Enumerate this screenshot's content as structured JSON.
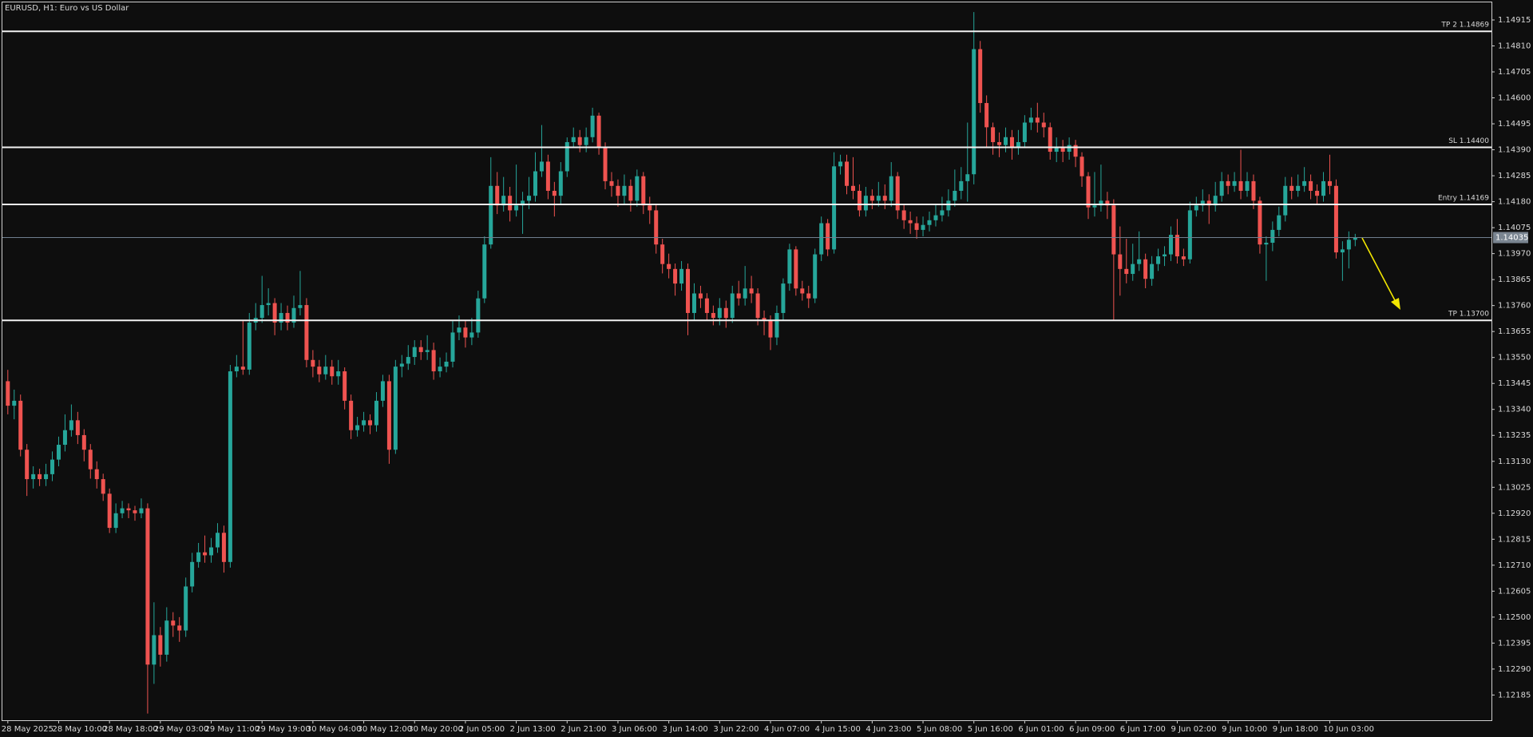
{
  "chart_data": {
    "type": "candlestick",
    "title": "EURUSD, H1:  Euro vs US Dollar",
    "categories": [
      "28 May 2025",
      null,
      null,
      null,
      null,
      null,
      null,
      null,
      "28 May 10:00",
      null,
      null,
      null,
      null,
      null,
      null,
      null,
      "28 May 18:00",
      null,
      null,
      null,
      null,
      null,
      null,
      null,
      "29 May 03:00",
      null,
      null,
      null,
      null,
      null,
      null,
      null,
      "29 May 11:00",
      null,
      null,
      null,
      null,
      null,
      null,
      null,
      "29 May 19:00",
      null,
      null,
      null,
      null,
      null,
      null,
      null,
      "30 May 04:00",
      null,
      null,
      null,
      null,
      null,
      null,
      null,
      "30 May 12:00",
      null,
      null,
      null,
      null,
      null,
      null,
      null,
      "30 May 20:00",
      null,
      null,
      null,
      null,
      null,
      null,
      null,
      "2 Jun 05:00",
      null,
      null,
      null,
      null,
      null,
      null,
      null,
      "2 Jun 13:00",
      null,
      null,
      null,
      null,
      null,
      null,
      null,
      "2 Jun 21:00",
      null,
      null,
      null,
      null,
      null,
      null,
      null,
      "3 Jun 06:00",
      null,
      null,
      null,
      null,
      null,
      null,
      null,
      "3 Jun 14:00",
      null,
      null,
      null,
      null,
      null,
      null,
      null,
      "3 Jun 22:00",
      null,
      null,
      null,
      null,
      null,
      null,
      null,
      "4 Jun 07:00",
      null,
      null,
      null,
      null,
      null,
      null,
      null,
      "4 Jun 15:00",
      null,
      null,
      null,
      null,
      null,
      null,
      null,
      "4 Jun 23:00",
      null,
      null,
      null,
      null,
      null,
      null,
      null,
      "5 Jun 08:00",
      null,
      null,
      null,
      null,
      null,
      null,
      null,
      "5 Jun 16:00",
      null,
      null,
      null,
      null,
      null,
      null,
      null,
      "6 Jun 01:00",
      null,
      null,
      null,
      null,
      null,
      null,
      null,
      "6 Jun 09:00",
      null,
      null,
      null,
      null,
      null,
      null,
      null,
      "6 Jun 17:00",
      null,
      null,
      null,
      null,
      null,
      null,
      null,
      "9 Jun 02:00",
      null,
      null,
      null,
      null,
      null,
      null,
      null,
      "9 Jun 10:00",
      null,
      null,
      null,
      null,
      null,
      null,
      null,
      "9 Jun 18:00",
      null,
      null,
      null,
      null,
      null,
      null,
      null,
      "10 Jun 03:00",
      null,
      null,
      null,
      null
    ],
    "open": [
      1.13454,
      1.13355,
      1.13375,
      1.13177,
      1.13058,
      1.13078,
      1.13058,
      1.13078,
      1.13137,
      1.13197,
      1.13256,
      1.13296,
      1.13236,
      1.13177,
      1.13098,
      1.13058,
      1.12999,
      1.12861,
      1.1292,
      1.1294,
      1.12932,
      1.1292,
      1.1294,
      1.12308,
      1.12427,
      1.12348,
      1.12486,
      1.12466,
      1.12446,
      1.12624,
      1.12723,
      1.12762,
      1.1275,
      1.12782,
      1.12841,
      1.12723,
      1.13494,
      1.13513,
      1.13501,
      1.13691,
      1.1371,
      1.13762,
      1.1377,
      1.13691,
      1.1373,
      1.13691,
      1.1375,
      1.13762,
      1.1354,
      1.13513,
      1.13482,
      1.13513,
      1.13474,
      1.13494,
      1.13375,
      1.13256,
      1.13276,
      1.13296,
      1.13276,
      1.13375,
      1.13454,
      1.13177,
      1.13513,
      1.13525,
      1.13552,
      1.13592,
      1.13572,
      1.1358,
      1.13494,
      1.13513,
      1.13533,
      1.13651,
      1.13671,
      1.13631,
      1.13651,
      1.13789,
      1.14007,
      1.14244,
      1.14165,
      1.14204,
      1.14145,
      1.14165,
      1.14184,
      1.14204,
      1.14303,
      1.14342,
      1.14224,
      1.14204,
      1.14303,
      1.14421,
      1.14441,
      1.14409,
      1.14441,
      1.14528,
      1.14402,
      1.14263,
      1.14244,
      1.14204,
      1.14244,
      1.14184,
      1.14283,
      1.14165,
      1.14145,
      1.14007,
      1.13928,
      1.13908,
      1.13849,
      1.13908,
      1.1373,
      1.13809,
      1.13789,
      1.1373,
      1.1371,
      1.1375,
      1.1371,
      1.13809,
      1.13789,
      1.13829,
      1.13809,
      1.1371,
      1.13698,
      1.13631,
      1.1373,
      1.13849,
      1.13987,
      1.13829,
      1.13809,
      1.13789,
      1.13967,
      1.14093,
      1.13987,
      1.14323,
      1.14342,
      1.14244,
      1.14224,
      1.14145,
      1.14204,
      1.14184,
      1.14204,
      1.14184,
      1.14283,
      1.14145,
      1.14105,
      1.14093,
      1.14066,
      1.14086,
      1.14105,
      1.14125,
      1.14145,
      1.14184,
      1.14224,
      1.14263,
      1.14291,
      1.14797,
      1.14579,
      1.14481,
      1.14421,
      1.14409,
      1.14441,
      1.14402,
      1.14421,
      1.145,
      1.1452,
      1.145,
      1.14481,
      1.14382,
      1.14402,
      1.14382,
      1.14409,
      1.14362,
      1.14283,
      1.14157,
      1.14165,
      1.14184,
      1.14165,
      1.13967,
      1.13908,
      1.13888,
      1.13928,
      1.13947,
      1.13868,
      1.13928,
      1.13959,
      1.13967,
      1.14046,
      1.13959,
      1.13947,
      1.14145,
      1.14165,
      1.14184,
      1.14165,
      1.14204,
      1.14263,
      1.14244,
      1.14263,
      1.14224,
      1.14263,
      1.14184,
      1.14007,
      1.14014,
      1.14066,
      1.14125,
      1.14244,
      1.14224,
      1.14244,
      1.14263,
      1.14224,
      1.14204,
      1.14263,
      1.14244,
      1.13975,
      1.13987,
      1.14026
    ],
    "high": [
      1.135,
      1.1342,
      1.134,
      1.132,
      1.1311,
      1.131,
      1.1312,
      1.1317,
      1.1323,
      1.1332,
      1.1336,
      1.1333,
      1.1326,
      1.132,
      1.1313,
      1.1308,
      1.1302,
      1.1296,
      1.1297,
      1.1296,
      1.1295,
      1.1298,
      1.1296,
      1.1256,
      1.1246,
      1.1254,
      1.1252,
      1.125,
      1.1266,
      1.1276,
      1.128,
      1.1283,
      1.1282,
      1.1288,
      1.1287,
      1.1352,
      1.1356,
      1.137,
      1.1373,
      1.1377,
      1.1388,
      1.1383,
      1.1379,
      1.1377,
      1.1376,
      1.138,
      1.139,
      1.1379,
      1.1358,
      1.1354,
      1.1356,
      1.1354,
      1.1354,
      1.1351,
      1.134,
      1.1331,
      1.1333,
      1.1332,
      1.1341,
      1.1348,
      1.1348,
      1.1354,
      1.1356,
      1.136,
      1.1362,
      1.1362,
      1.1364,
      1.1361,
      1.1355,
      1.1357,
      1.137,
      1.1372,
      1.137,
      1.1371,
      1.1382,
      1.1404,
      1.1436,
      1.143,
      1.1428,
      1.1424,
      1.1433,
      1.1422,
      1.1428,
      1.1438,
      1.1449,
      1.1437,
      1.1426,
      1.1434,
      1.1444,
      1.1448,
      1.1447,
      1.1448,
      1.1456,
      1.1454,
      1.1442,
      1.143,
      1.1427,
      1.1429,
      1.1427,
      1.1431,
      1.143,
      1.142,
      1.1417,
      1.1403,
      1.1397,
      1.1393,
      1.1394,
      1.1393,
      1.1385,
      1.1384,
      1.1381,
      1.1376,
      1.1379,
      1.1378,
      1.1384,
      1.1386,
      1.1392,
      1.1388,
      1.1383,
      1.1374,
      1.1372,
      1.1376,
      1.1387,
      1.1401,
      1.14,
      1.1386,
      1.1384,
      1.1399,
      1.1412,
      1.1411,
      1.1438,
      1.1437,
      1.1437,
      1.1436,
      1.1425,
      1.1424,
      1.1423,
      1.1426,
      1.1425,
      1.1434,
      1.143,
      1.1417,
      1.1414,
      1.1412,
      1.1412,
      1.1414,
      1.1417,
      1.142,
      1.1423,
      1.1431,
      1.1432,
      1.145,
      1.14947,
      1.1483,
      1.1461,
      1.145,
      1.1446,
      1.1448,
      1.1447,
      1.1447,
      1.1453,
      1.1456,
      1.1458,
      1.1454,
      1.145,
      1.1444,
      1.1443,
      1.1444,
      1.1443,
      1.1438,
      1.143,
      1.143,
      1.1433,
      1.1422,
      1.1419,
      1.1408,
      1.1403,
      1.1401,
      1.1406,
      1.1397,
      1.1396,
      1.1399,
      1.14,
      1.1408,
      1.1411,
      1.1399,
      1.1418,
      1.142,
      1.1423,
      1.1421,
      1.1426,
      1.143,
      1.1429,
      1.143,
      1.1439,
      1.143,
      1.1429,
      1.142,
      1.1404,
      1.141,
      1.1416,
      1.1428,
      1.1428,
      1.1429,
      1.1432,
      1.1429,
      1.1425,
      1.143,
      1.1437,
      1.1427,
      1.1402,
      1.1406,
      1.1405
    ],
    "low": [
      1.1332,
      1.133,
      1.1315,
      1.1299,
      1.1302,
      1.1303,
      1.1303,
      1.1305,
      1.1311,
      1.1317,
      1.1323,
      1.132,
      1.1313,
      1.1306,
      1.1302,
      1.1297,
      1.1284,
      1.1284,
      1.129,
      1.129,
      1.1289,
      1.129,
      1.1211,
      1.1223,
      1.123,
      1.1232,
      1.1242,
      1.124,
      1.1242,
      1.126,
      1.127,
      1.1272,
      1.1272,
      1.1276,
      1.1268,
      1.127,
      1.1347,
      1.1348,
      1.1348,
      1.1366,
      1.1369,
      1.1372,
      1.1364,
      1.1366,
      1.1366,
      1.1367,
      1.1372,
      1.1351,
      1.1347,
      1.1345,
      1.1346,
      1.1344,
      1.1344,
      1.1334,
      1.1322,
      1.1323,
      1.1325,
      1.1324,
      1.1325,
      1.1335,
      1.1312,
      1.1316,
      1.1347,
      1.135,
      1.1352,
      1.1354,
      1.1354,
      1.1346,
      1.1347,
      1.1349,
      1.1351,
      1.1362,
      1.1359,
      1.136,
      1.1363,
      1.1377,
      1.1399,
      1.1413,
      1.1414,
      1.141,
      1.1412,
      1.1405,
      1.1415,
      1.1418,
      1.1428,
      1.1419,
      1.1412,
      1.1417,
      1.1428,
      1.144,
      1.1438,
      1.1438,
      1.1442,
      1.1437,
      1.1423,
      1.142,
      1.1416,
      1.1417,
      1.1414,
      1.1416,
      1.1413,
      1.1409,
      1.1397,
      1.1389,
      1.1387,
      1.138,
      1.1382,
      1.1364,
      1.137,
      1.1375,
      1.137,
      1.1368,
      1.1368,
      1.1367,
      1.1369,
      1.1376,
      1.1376,
      1.1377,
      1.1368,
      1.1364,
      1.1358,
      1.136,
      1.137,
      1.1382,
      1.138,
      1.1378,
      1.1375,
      1.1377,
      1.1394,
      1.1396,
      1.1397,
      1.1429,
      1.1421,
      1.1419,
      1.1412,
      1.1412,
      1.1415,
      1.1416,
      1.1415,
      1.1416,
      1.1411,
      1.1407,
      1.1405,
      1.1403,
      1.1404,
      1.1406,
      1.1408,
      1.141,
      1.1412,
      1.1416,
      1.1419,
      1.1418,
      1.1425,
      1.1454,
      1.144,
      1.1437,
      1.1436,
      1.1438,
      1.1435,
      1.1437,
      1.144,
      1.1447,
      1.1446,
      1.1444,
      1.1435,
      1.1434,
      1.1434,
      1.1435,
      1.1432,
      1.1424,
      1.1411,
      1.1412,
      1.1414,
      1.1411,
      1.137,
      1.138,
      1.1385,
      1.1386,
      1.139,
      1.1383,
      1.1384,
      1.139,
      1.1392,
      1.1394,
      1.1393,
      1.1392,
      1.1393,
      1.1412,
      1.1414,
      1.1409,
      1.1414,
      1.1418,
      1.1421,
      1.1422,
      1.1419,
      1.142,
      1.1415,
      1.1397,
      1.1386,
      1.1398,
      1.1404,
      1.141,
      1.1419,
      1.142,
      1.1422,
      1.1419,
      1.1417,
      1.1418,
      1.1421,
      1.1395,
      1.1386,
      1.1391,
      1.14
    ],
    "close": [
      1.13355,
      1.13375,
      1.13177,
      1.13058,
      1.13078,
      1.13058,
      1.13078,
      1.13137,
      1.13197,
      1.13256,
      1.13296,
      1.13236,
      1.13177,
      1.13098,
      1.13058,
      1.12999,
      1.12861,
      1.1292,
      1.1294,
      1.12932,
      1.1292,
      1.1294,
      1.12308,
      1.12427,
      1.12348,
      1.12486,
      1.12466,
      1.12446,
      1.12624,
      1.12723,
      1.12762,
      1.1275,
      1.12782,
      1.12841,
      1.12723,
      1.13494,
      1.13513,
      1.13501,
      1.13691,
      1.1371,
      1.13762,
      1.1377,
      1.13691,
      1.1373,
      1.13691,
      1.1375,
      1.13762,
      1.1354,
      1.13513,
      1.13482,
      1.13513,
      1.13474,
      1.13494,
      1.13375,
      1.13256,
      1.13276,
      1.13296,
      1.13276,
      1.13375,
      1.13454,
      1.13177,
      1.13513,
      1.13525,
      1.13552,
      1.13592,
      1.13572,
      1.1358,
      1.13494,
      1.13513,
      1.13533,
      1.13651,
      1.13671,
      1.13631,
      1.13651,
      1.13789,
      1.14007,
      1.14244,
      1.14165,
      1.14204,
      1.14145,
      1.14165,
      1.14184,
      1.14204,
      1.14303,
      1.14342,
      1.14224,
      1.14204,
      1.14303,
      1.14421,
      1.14441,
      1.14409,
      1.14441,
      1.14528,
      1.14402,
      1.14263,
      1.14244,
      1.14204,
      1.14244,
      1.14184,
      1.14283,
      1.14165,
      1.14145,
      1.14007,
      1.13928,
      1.13908,
      1.13849,
      1.13908,
      1.1373,
      1.13809,
      1.13789,
      1.1373,
      1.1371,
      1.1375,
      1.1371,
      1.13809,
      1.13789,
      1.13829,
      1.13809,
      1.1371,
      1.13698,
      1.13631,
      1.1373,
      1.13849,
      1.13987,
      1.13829,
      1.13809,
      1.13789,
      1.13967,
      1.14093,
      1.13987,
      1.14323,
      1.14342,
      1.14244,
      1.14224,
      1.14145,
      1.14204,
      1.14184,
      1.14204,
      1.14184,
      1.14283,
      1.14145,
      1.14105,
      1.14093,
      1.14066,
      1.14086,
      1.14105,
      1.14125,
      1.14145,
      1.14184,
      1.14224,
      1.14263,
      1.14291,
      1.14797,
      1.14579,
      1.14481,
      1.14421,
      1.14409,
      1.14441,
      1.14402,
      1.14421,
      1.145,
      1.1452,
      1.145,
      1.14481,
      1.14382,
      1.14402,
      1.14382,
      1.14409,
      1.14362,
      1.14283,
      1.14157,
      1.14165,
      1.14184,
      1.14165,
      1.13967,
      1.13908,
      1.13888,
      1.13928,
      1.13947,
      1.13868,
      1.13928,
      1.13959,
      1.13967,
      1.14046,
      1.13959,
      1.13947,
      1.14145,
      1.14165,
      1.14184,
      1.14165,
      1.14204,
      1.14263,
      1.14244,
      1.14263,
      1.14224,
      1.14263,
      1.14184,
      1.14007,
      1.14014,
      1.14066,
      1.14125,
      1.14244,
      1.14224,
      1.14244,
      1.14263,
      1.14224,
      1.14204,
      1.14263,
      1.14244,
      1.13975,
      1.13987,
      1.14026,
      1.14035
    ],
    "up_color": "#26a69a",
    "down_color": "#ef5350",
    "ylim": [
      1.12083,
      1.14986
    ],
    "yticks": [
      1.14915,
      {
        "value": 1.1481,
        "label": "1.14810"
      },
      1.14705,
      {
        "value": 1.146,
        "label": "1.14600"
      },
      1.14495,
      {
        "value": 1.1439,
        "label": "1.14390"
      },
      1.14285,
      {
        "value": 1.1418,
        "label": "1.14180"
      },
      1.14075,
      {
        "value": 1.1397,
        "label": "1.13970"
      },
      1.13865,
      {
        "value": 1.1376,
        "label": "1.13760"
      },
      1.13655,
      {
        "value": 1.1355,
        "label": "1.13550"
      },
      1.13445,
      {
        "value": 1.1334,
        "label": "1.13340"
      },
      1.13235,
      {
        "value": 1.1313,
        "label": "1.13130"
      },
      1.13025,
      {
        "value": 1.1292,
        "label": "1.12920"
      },
      1.12815,
      {
        "value": 1.1271,
        "label": "1.12710"
      },
      1.12605,
      {
        "value": 1.125,
        "label": "1.12500"
      },
      1.12395,
      {
        "value": 1.1229,
        "label": "1.12290"
      },
      1.12185
    ],
    "levels": [
      {
        "label": "TP 2 1.14869",
        "value": 1.14869
      },
      {
        "label": "SL 1.14400",
        "value": 1.144
      },
      {
        "label": "Entry 1.14169",
        "value": 1.14169
      },
      {
        "label": "TP 1.13700",
        "value": 1.137
      }
    ],
    "last_price": 1.14035
  }
}
